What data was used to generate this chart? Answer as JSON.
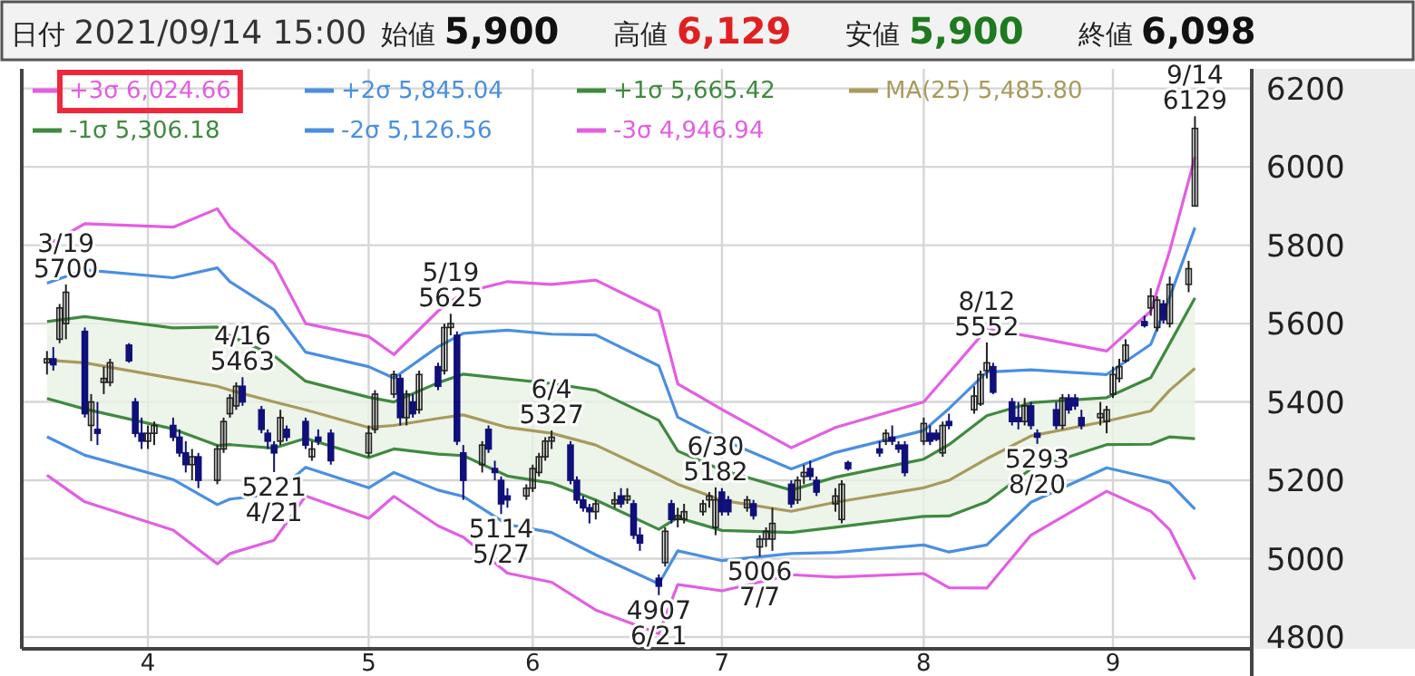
{
  "chart_data": {
    "type": "candlestick",
    "annotations": [
      "日付 2021/09/14 15:00",
      "始値 5,900",
      "高値 6,129",
      "安値 5,900",
      "終値 6,098",
      {
        "text": "3/19\n5700",
        "x": "2021-03-19",
        "y": 5700
      },
      {
        "text": "4/16\n5463",
        "x": "2021-04-16",
        "y": 5463
      },
      {
        "text": "5221\n4/21",
        "x": "2021-04-21",
        "y": 5221
      },
      {
        "text": "5/19\n5625",
        "x": "2021-05-19",
        "y": 5625
      },
      {
        "text": "5114\n5/27",
        "x": "2021-05-27",
        "y": 5114
      },
      {
        "text": "6/4\n5327",
        "x": "2021-06-04",
        "y": 5327
      },
      {
        "text": "4907\n6/21",
        "x": "2021-06-21",
        "y": 4907
      },
      {
        "text": "6/30\n5182",
        "x": "2021-06-30",
        "y": 5182
      },
      {
        "text": "5006\n7/7",
        "x": "2021-07-07",
        "y": 5006
      },
      {
        "text": "8/12\n5552",
        "x": "2021-08-12",
        "y": 5552
      },
      {
        "text": "5293\n8/20",
        "x": "2021-08-20",
        "y": 5293
      },
      {
        "text": "9/14\n6129",
        "x": "2021-09-14",
        "y": 6129
      }
    ],
    "x": [
      "2021-03-16",
      "2021-03-17",
      "2021-03-18",
      "2021-03-19",
      "2021-03-22",
      "2021-03-23",
      "2021-03-24",
      "2021-03-25",
      "2021-03-26",
      "2021-03-29",
      "2021-03-30",
      "2021-03-31",
      "2021-04-01",
      "2021-04-02",
      "2021-04-05",
      "2021-04-06",
      "2021-04-07",
      "2021-04-08",
      "2021-04-09",
      "2021-04-12",
      "2021-04-13",
      "2021-04-14",
      "2021-04-15",
      "2021-04-16",
      "2021-04-19",
      "2021-04-20",
      "2021-04-21",
      "2021-04-22",
      "2021-04-23",
      "2021-04-26",
      "2021-04-27",
      "2021-04-28",
      "2021-04-30",
      "2021-05-06",
      "2021-05-07",
      "2021-05-10",
      "2021-05-11",
      "2021-05-12",
      "2021-05-13",
      "2021-05-14",
      "2021-05-17",
      "2021-05-18",
      "2021-05-19",
      "2021-05-20",
      "2021-05-21",
      "2021-05-24",
      "2021-05-25",
      "2021-05-26",
      "2021-05-27",
      "2021-05-28",
      "2021-05-31",
      "2021-06-01",
      "2021-06-02",
      "2021-06-03",
      "2021-06-04",
      "2021-06-07",
      "2021-06-08",
      "2021-06-09",
      "2021-06-10",
      "2021-06-11",
      "2021-06-14",
      "2021-06-15",
      "2021-06-16",
      "2021-06-17",
      "2021-06-18",
      "2021-06-21",
      "2021-06-22",
      "2021-06-23",
      "2021-06-24",
      "2021-06-25",
      "2021-06-28",
      "2021-06-29",
      "2021-06-30",
      "2021-07-01",
      "2021-07-02",
      "2021-07-05",
      "2021-07-06",
      "2021-07-07",
      "2021-07-08",
      "2021-07-09",
      "2021-07-12",
      "2021-07-13",
      "2021-07-14",
      "2021-07-15",
      "2021-07-16",
      "2021-07-19",
      "2021-07-20",
      "2021-07-21",
      "2021-07-26",
      "2021-07-27",
      "2021-07-28",
      "2021-07-29",
      "2021-07-30",
      "2021-08-02",
      "2021-08-03",
      "2021-08-04",
      "2021-08-05",
      "2021-08-06",
      "2021-08-10",
      "2021-08-11",
      "2021-08-12",
      "2021-08-13",
      "2021-08-16",
      "2021-08-17",
      "2021-08-18",
      "2021-08-19",
      "2021-08-20",
      "2021-08-23",
      "2021-08-24",
      "2021-08-25",
      "2021-08-26",
      "2021-08-27",
      "2021-08-30",
      "2021-08-31",
      "2021-09-01",
      "2021-09-02",
      "2021-09-03",
      "2021-09-06",
      "2021-09-07",
      "2021-09-08",
      "2021-09-09",
      "2021-09-10",
      "2021-09-13",
      "2021-09-14"
    ],
    "ohlc": [
      [
        5500,
        5530,
        5470,
        5510
      ],
      [
        5510,
        5540,
        5480,
        5495
      ],
      [
        5560,
        5650,
        5550,
        5640
      ],
      [
        5600,
        5700,
        5560,
        5680
      ],
      [
        5580,
        5590,
        5360,
        5370
      ],
      [
        5340,
        5420,
        5300,
        5400
      ],
      [
        5330,
        5400,
        5290,
        5320
      ],
      [
        5450,
        5490,
        5420,
        5460
      ],
      [
        5450,
        5510,
        5440,
        5500
      ],
      [
        5545,
        5550,
        5500,
        5505
      ],
      [
        5400,
        5410,
        5310,
        5320
      ],
      [
        5320,
        5360,
        5280,
        5300
      ],
      [
        5300,
        5340,
        5280,
        5320
      ],
      [
        5320,
        5350,
        5290,
        5340
      ],
      [
        5340,
        5360,
        5300,
        5310
      ],
      [
        5310,
        5330,
        5260,
        5270
      ],
      [
        5270,
        5300,
        5220,
        5240
      ],
      [
        5240,
        5280,
        5200,
        5260
      ],
      [
        5260,
        5270,
        5180,
        5200
      ],
      [
        5200,
        5290,
        5190,
        5280
      ],
      [
        5280,
        5360,
        5270,
        5350
      ],
      [
        5370,
        5420,
        5360,
        5410
      ],
      [
        5390,
        5450,
        5380,
        5440
      ],
      [
        5440,
        5463,
        5390,
        5400
      ],
      [
        5380,
        5390,
        5320,
        5330
      ],
      [
        5320,
        5330,
        5280,
        5300
      ],
      [
        5290,
        5300,
        5221,
        5270
      ],
      [
        5300,
        5380,
        5290,
        5360
      ],
      [
        5330,
        5340,
        5300,
        5310
      ],
      [
        5350,
        5360,
        5280,
        5290
      ],
      [
        5260,
        5300,
        5250,
        5280
      ],
      [
        5310,
        5330,
        5290,
        5300
      ],
      [
        5320,
        5330,
        5240,
        5250
      ],
      [
        5270,
        5340,
        5260,
        5320
      ],
      [
        5330,
        5430,
        5320,
        5420
      ],
      [
        5420,
        5480,
        5410,
        5470
      ],
      [
        5460,
        5470,
        5340,
        5360
      ],
      [
        5360,
        5430,
        5340,
        5420
      ],
      [
        5400,
        5420,
        5360,
        5370
      ],
      [
        5380,
        5480,
        5370,
        5470
      ],
      [
        5490,
        5500,
        5430,
        5440
      ],
      [
        5480,
        5600,
        5470,
        5590
      ],
      [
        5590,
        5625,
        5570,
        5600
      ],
      [
        5570,
        5580,
        5290,
        5300
      ],
      [
        5270,
        5290,
        5150,
        5200
      ],
      [
        5240,
        5300,
        5220,
        5290
      ],
      [
        5330,
        5340,
        5270,
        5280
      ],
      [
        5230,
        5250,
        5200,
        5220
      ],
      [
        5200,
        5210,
        5114,
        5140
      ],
      [
        5160,
        5180,
        5130,
        5150
      ],
      [
        5160,
        5190,
        5150,
        5180
      ],
      [
        5180,
        5240,
        5170,
        5230
      ],
      [
        5220,
        5270,
        5210,
        5260
      ],
      [
        5260,
        5310,
        5250,
        5300
      ],
      [
        5300,
        5327,
        5280,
        5310
      ],
      [
        5290,
        5300,
        5190,
        5200
      ],
      [
        5200,
        5210,
        5140,
        5150
      ],
      [
        5150,
        5160,
        5120,
        5130
      ],
      [
        5130,
        5140,
        5090,
        5120
      ],
      [
        5120,
        5150,
        5100,
        5140
      ],
      [
        5140,
        5170,
        5130,
        5150
      ],
      [
        5160,
        5180,
        5130,
        5140
      ],
      [
        5150,
        5180,
        5140,
        5160
      ],
      [
        5140,
        5150,
        5050,
        5060
      ],
      [
        5060,
        5080,
        5020,
        5040
      ],
      [
        4950,
        4960,
        4907,
        4930
      ],
      [
        4990,
        5080,
        4980,
        5070
      ],
      [
        5140,
        5150,
        5090,
        5100
      ],
      [
        5100,
        5130,
        5080,
        5110
      ],
      [
        5100,
        5140,
        5090,
        5120
      ],
      [
        5120,
        5150,
        5110,
        5140
      ],
      [
        5150,
        5170,
        5130,
        5160
      ],
      [
        5080,
        5182,
        5060,
        5150
      ],
      [
        5170,
        5180,
        5110,
        5120
      ],
      [
        5150,
        5160,
        5110,
        5120
      ],
      [
        5130,
        5160,
        5120,
        5150
      ],
      [
        5140,
        5150,
        5100,
        5110
      ],
      [
        5030,
        5060,
        5006,
        5050
      ],
      [
        5050,
        5080,
        5030,
        5070
      ],
      [
        5050,
        5130,
        5020,
        5090
      ],
      [
        5190,
        5200,
        5130,
        5140
      ],
      [
        5150,
        5210,
        5140,
        5200
      ],
      [
        5210,
        5240,
        5190,
        5220
      ],
      [
        5230,
        5250,
        5200,
        5210
      ],
      [
        5200,
        5210,
        5160,
        5170
      ],
      [
        5140,
        5180,
        5120,
        5160
      ],
      [
        5100,
        5200,
        5090,
        5190
      ],
      [
        5245,
        5250,
        5225,
        5230
      ],
      [
        5280,
        5300,
        5260,
        5270
      ],
      [
        5300,
        5330,
        5290,
        5320
      ],
      [
        5310,
        5340,
        5290,
        5300
      ],
      [
        5290,
        5300,
        5270,
        5280
      ],
      [
        5290,
        5300,
        5210,
        5220
      ],
      [
        5300,
        5360,
        5290,
        5345
      ],
      [
        5320,
        5340,
        5290,
        5300
      ],
      [
        5320,
        5330,
        5300,
        5305
      ],
      [
        5270,
        5350,
        5260,
        5340
      ],
      [
        5350,
        5370,
        5330,
        5340
      ],
      [
        5380,
        5440,
        5370,
        5415
      ],
      [
        5395,
        5480,
        5390,
        5470
      ],
      [
        5480,
        5552,
        5460,
        5500
      ],
      [
        5490,
        5500,
        5420,
        5425
      ],
      [
        5400,
        5410,
        5340,
        5350
      ],
      [
        5360,
        5400,
        5330,
        5350
      ],
      [
        5350,
        5410,
        5340,
        5390
      ],
      [
        5390,
        5400,
        5330,
        5340
      ],
      [
        5320,
        5330,
        5293,
        5310
      ],
      [
        5380,
        5400,
        5330,
        5340
      ],
      [
        5340,
        5420,
        5330,
        5410
      ],
      [
        5410,
        5420,
        5370,
        5380
      ],
      [
        5410,
        5420,
        5380,
        5390
      ],
      [
        5360,
        5380,
        5330,
        5340
      ],
      [
        5360,
        5400,
        5340,
        5370
      ],
      [
        5350,
        5390,
        5320,
        5380
      ],
      [
        5420,
        5490,
        5410,
        5470
      ],
      [
        5460,
        5510,
        5450,
        5490
      ],
      [
        5505,
        5560,
        5500,
        5545
      ],
      [
        5605,
        5620,
        5590,
        5595
      ],
      [
        5640,
        5690,
        5620,
        5670
      ],
      [
        5590,
        5670,
        5580,
        5660
      ],
      [
        5650,
        5660,
        5600,
        5610
      ],
      [
        5600,
        5720,
        5590,
        5700
      ],
      [
        5700,
        5760,
        5680,
        5740
      ],
      [
        5900,
        6129,
        5900,
        6098
      ]
    ],
    "series": [
      {
        "name": "+3σ 6,024.66",
        "type": "line",
        "color": "#e35ee3",
        "x": [
          "2021-03-16",
          "2021-03-22",
          "2021-04-05",
          "2021-04-12",
          "2021-04-14",
          "2021-04-21",
          "2021-04-26",
          "2021-05-06",
          "2021-05-10",
          "2021-05-17",
          "2021-05-21",
          "2021-05-28",
          "2021-06-04",
          "2021-06-11",
          "2021-06-21",
          "2021-06-24",
          "2021-07-01",
          "2021-07-12",
          "2021-07-19",
          "2021-08-02",
          "2021-08-06",
          "2021-08-12",
          "2021-08-19",
          "2021-08-31",
          "2021-09-07",
          "2021-09-10",
          "2021-09-14"
        ],
        "values": [
          5800,
          5855,
          5846,
          5893,
          5846,
          5753,
          5600,
          5567,
          5521,
          5632,
          5679,
          5707,
          5700,
          5711,
          5632,
          5446,
          5381,
          5283,
          5335,
          5400,
          5474,
          5586,
          5567,
          5530,
          5632,
          5786,
          6024.66
        ]
      },
      {
        "name": "+2σ 5,845.04",
        "type": "line",
        "color": "#4a8fe0",
        "x": [
          "2021-03-16",
          "2021-03-22",
          "2021-04-05",
          "2021-04-12",
          "2021-04-14",
          "2021-04-21",
          "2021-04-26",
          "2021-05-06",
          "2021-05-10",
          "2021-05-17",
          "2021-05-21",
          "2021-05-28",
          "2021-06-04",
          "2021-06-11",
          "2021-06-21",
          "2021-06-24",
          "2021-07-01",
          "2021-07-12",
          "2021-07-19",
          "2021-08-02",
          "2021-08-06",
          "2021-08-12",
          "2021-08-19",
          "2021-08-31",
          "2021-09-07",
          "2021-09-10",
          "2021-09-14"
        ],
        "values": [
          5703,
          5737,
          5717,
          5742,
          5707,
          5635,
          5527,
          5490,
          5461,
          5541,
          5575,
          5583,
          5573,
          5571,
          5492,
          5361,
          5304,
          5229,
          5271,
          5327,
          5383,
          5476,
          5482,
          5470,
          5547,
          5667,
          5845.04
        ]
      },
      {
        "name": "+1σ 5,665.42",
        "type": "line",
        "color": "#3f8a3f",
        "x": [
          "2021-03-16",
          "2021-03-22",
          "2021-04-05",
          "2021-04-12",
          "2021-04-14",
          "2021-04-21",
          "2021-04-26",
          "2021-05-06",
          "2021-05-10",
          "2021-05-17",
          "2021-05-21",
          "2021-05-28",
          "2021-06-04",
          "2021-06-11",
          "2021-06-21",
          "2021-06-24",
          "2021-07-01",
          "2021-07-12",
          "2021-07-19",
          "2021-08-02",
          "2021-08-06",
          "2021-08-12",
          "2021-08-19",
          "2021-08-31",
          "2021-09-07",
          "2021-09-10",
          "2021-09-14"
        ],
        "values": [
          5605,
          5618,
          5589,
          5591,
          5569,
          5518,
          5453,
          5412,
          5400,
          5449,
          5471,
          5459,
          5447,
          5430,
          5353,
          5275,
          5226,
          5175,
          5208,
          5254,
          5291,
          5365,
          5398,
          5411,
          5462,
          5549,
          5665.42
        ]
      },
      {
        "name": "MA(25) 5,485.80",
        "type": "line",
        "color": "#a89a5c",
        "x": [
          "2021-03-16",
          "2021-03-22",
          "2021-04-05",
          "2021-04-12",
          "2021-04-14",
          "2021-04-21",
          "2021-04-26",
          "2021-05-06",
          "2021-05-10",
          "2021-05-17",
          "2021-05-21",
          "2021-05-28",
          "2021-06-04",
          "2021-06-11",
          "2021-06-21",
          "2021-06-24",
          "2021-07-01",
          "2021-07-12",
          "2021-07-19",
          "2021-08-02",
          "2021-08-06",
          "2021-08-12",
          "2021-08-19",
          "2021-08-31",
          "2021-09-07",
          "2021-09-10",
          "2021-09-14"
        ],
        "values": [
          5507,
          5500,
          5460,
          5440,
          5430,
          5400,
          5380,
          5335,
          5340,
          5358,
          5367,
          5335,
          5320,
          5290,
          5214,
          5190,
          5149,
          5121,
          5144,
          5181,
          5200,
          5255,
          5313,
          5351,
          5377,
          5430,
          5485.8
        ],
        "lower": [
          5409,
          5382,
          5331,
          5289,
          5291,
          5282,
          5307,
          5258,
          5280,
          5267,
          5263,
          5211,
          5193,
          5150,
          5075,
          5105,
          5072,
          5067,
          5080,
          5108,
          5109,
          5145,
          5229,
          5291,
          5292,
          5311,
          5306.18
        ],
        "upper": [
          5605,
          5618,
          5589,
          5591,
          5569,
          5518,
          5453,
          5412,
          5400,
          5449,
          5471,
          5459,
          5447,
          5430,
          5353,
          5275,
          5226,
          5175,
          5208,
          5254,
          5291,
          5365,
          5398,
          5411,
          5462,
          5549,
          5665.42
        ]
      },
      {
        "name": "-1σ 5,306.18",
        "type": "line",
        "color": "#3f8a3f",
        "x": [
          "2021-03-16",
          "2021-03-22",
          "2021-04-05",
          "2021-04-12",
          "2021-04-14",
          "2021-04-21",
          "2021-04-26",
          "2021-05-06",
          "2021-05-10",
          "2021-05-17",
          "2021-05-21",
          "2021-05-28",
          "2021-06-04",
          "2021-06-11",
          "2021-06-21",
          "2021-06-24",
          "2021-07-01",
          "2021-07-12",
          "2021-07-19",
          "2021-08-02",
          "2021-08-06",
          "2021-08-12",
          "2021-08-19",
          "2021-08-31",
          "2021-09-07",
          "2021-09-10",
          "2021-09-14"
        ],
        "values": [
          5409,
          5382,
          5331,
          5289,
          5291,
          5282,
          5307,
          5258,
          5280,
          5267,
          5263,
          5211,
          5193,
          5150,
          5075,
          5105,
          5072,
          5067,
          5080,
          5108,
          5109,
          5145,
          5229,
          5291,
          5292,
          5311,
          5306.18
        ]
      },
      {
        "name": "-2σ 5,126.56",
        "type": "line",
        "color": "#4a8fe0",
        "x": [
          "2021-03-16",
          "2021-03-22",
          "2021-04-05",
          "2021-04-12",
          "2021-04-14",
          "2021-04-21",
          "2021-04-26",
          "2021-05-06",
          "2021-05-10",
          "2021-05-17",
          "2021-05-21",
          "2021-05-28",
          "2021-06-04",
          "2021-06-11",
          "2021-06-21",
          "2021-06-24",
          "2021-07-01",
          "2021-07-12",
          "2021-07-19",
          "2021-08-02",
          "2021-08-06",
          "2021-08-12",
          "2021-08-19",
          "2021-08-31",
          "2021-09-07",
          "2021-09-10",
          "2021-09-14"
        ],
        "values": [
          5311,
          5264,
          5202,
          5138,
          5152,
          5165,
          5233,
          5181,
          5220,
          5175,
          5159,
          5087,
          5067,
          5010,
          4936,
          5020,
          4995,
          5013,
          5016,
          5035,
          5017,
          5035,
          5144,
          5232,
          5206,
          5193,
          5126.56
        ]
      },
      {
        "name": "-3σ 4,946.94",
        "type": "line",
        "color": "#e35ee3",
        "x": [
          "2021-03-16",
          "2021-03-22",
          "2021-04-05",
          "2021-04-12",
          "2021-04-14",
          "2021-04-21",
          "2021-04-26",
          "2021-05-06",
          "2021-05-10",
          "2021-05-17",
          "2021-05-21",
          "2021-05-28",
          "2021-06-04",
          "2021-06-11",
          "2021-06-21",
          "2021-06-24",
          "2021-07-01",
          "2021-07-12",
          "2021-07-19",
          "2021-08-02",
          "2021-08-06",
          "2021-08-12",
          "2021-08-19",
          "2021-08-31",
          "2021-09-07",
          "2021-09-10",
          "2021-09-14"
        ],
        "values": [
          5213,
          5145,
          5073,
          4987,
          5013,
          5047,
          5160,
          5103,
          5159,
          5084,
          5055,
          4963,
          4940,
          4869,
          4809,
          4934,
          4918,
          4959,
          4953,
          4962,
          4926,
          4925,
          5060,
          5172,
          5121,
          5074,
          4946.94
        ]
      }
    ],
    "xticks": [
      {
        "value": "2021-04-01",
        "label": "4"
      },
      {
        "value": "2021-05-06",
        "label": "5"
      },
      {
        "value": "2021-06-01",
        "label": "6"
      },
      {
        "value": "2021-07-01",
        "label": "7"
      },
      {
        "value": "2021-08-02",
        "label": "8"
      },
      {
        "value": "2021-09-01",
        "label": "9"
      }
    ],
    "xlim": [
      "2021-03-12",
      "2021-09-23"
    ],
    "ylim": [
      4770,
      6250
    ],
    "yticks": [
      4800,
      5000,
      5200,
      5400,
      5600,
      5800,
      6000,
      6200
    ],
    "grid": true,
    "legend": "top left"
  }
}
